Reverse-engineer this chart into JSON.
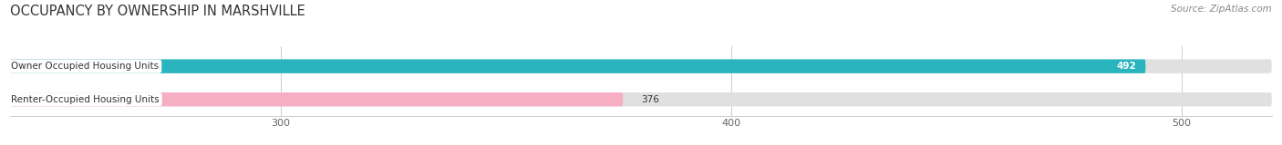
{
  "title": "OCCUPANCY BY OWNERSHIP IN MARSHVILLE",
  "source": "Source: ZipAtlas.com",
  "categories": [
    "Owner Occupied Housing Units",
    "Renter-Occupied Housing Units"
  ],
  "values": [
    492,
    376
  ],
  "bar_colors": [
    "#2ab5be",
    "#f5aec4"
  ],
  "bar_bg_color": "#e0e0e0",
  "xlim_min": 240,
  "xlim_max": 520,
  "xticks": [
    300,
    400,
    500
  ],
  "title_fontsize": 10.5,
  "label_fontsize": 7.5,
  "value_fontsize": 7.5,
  "source_fontsize": 7.5,
  "bar_height": 0.42,
  "bg_color": "#ffffff",
  "text_color": "#333333"
}
